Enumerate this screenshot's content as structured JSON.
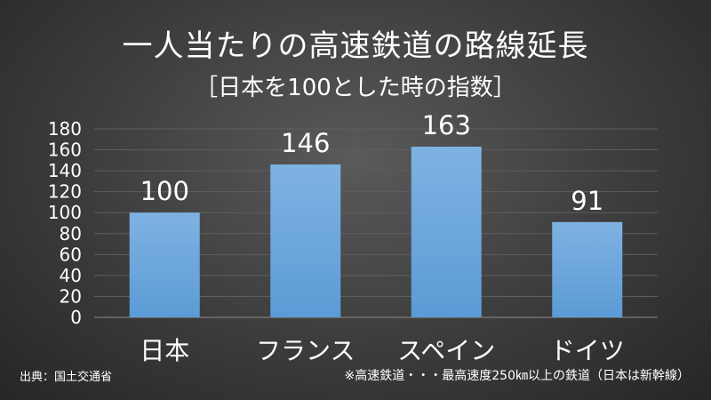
{
  "title": "一人当たりの高速鉄道の路線延長",
  "subtitle": "［日本を100とした時の指数］",
  "source": "出典：国土交通省",
  "note": "※高速鉄道・・・最高速度250㎞以上の鉄道（日本は新幹線）",
  "colors": {
    "bar": "#5b9bd5",
    "bar_light": "#7fb2e3",
    "grid": "#5e5e5e",
    "axis": "#8c8c8c",
    "text": "#ffffff"
  },
  "chart_data": {
    "type": "bar",
    "categories": [
      "日本",
      "フランス",
      "スペイン",
      "ドイツ"
    ],
    "values": [
      100,
      146,
      163,
      91
    ],
    "data_labels": [
      "100",
      "146",
      "163",
      "91"
    ],
    "title": "一人当たりの高速鉄道の路線延長",
    "subtitle": "［日本を100とした時の指数］",
    "xlabel": "",
    "ylabel": "",
    "ylim": [
      0,
      180
    ],
    "yticks": [
      0,
      20,
      40,
      60,
      80,
      100,
      120,
      140,
      160,
      180
    ],
    "grid": true,
    "legend": "none"
  }
}
